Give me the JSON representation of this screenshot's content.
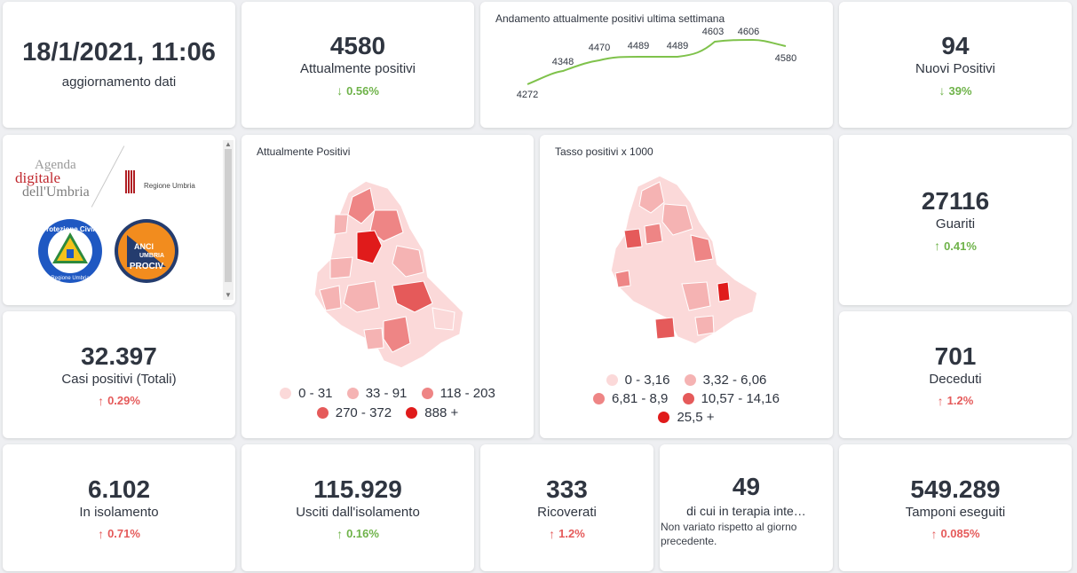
{
  "update": {
    "datetime": "18/1/2021, 11:06",
    "label": "aggiornamento dati"
  },
  "attualmente_positivi": {
    "value": "4580",
    "label": "Attualmente positivi",
    "delta": "0.56%"
  },
  "trend": {
    "title": "Andamento attualmente positivi ultima settimana",
    "points": [
      "4272",
      "4348",
      "4470",
      "4489",
      "4489",
      "4603",
      "4606",
      "4580"
    ]
  },
  "nuovi_positivi": {
    "value": "94",
    "label": "Nuovi Positivi",
    "delta": "39%"
  },
  "logos": {
    "agenda": [
      "Agenda",
      "digitale",
      "dell'Umbria"
    ],
    "regione": "Regione Umbria",
    "protezione": [
      "Protezione Civile",
      "Regione Umbria"
    ],
    "anci": [
      "ANCI",
      "UMBRIA",
      "PROCIV"
    ]
  },
  "map_positivi": {
    "title": "Attualmente Positivi",
    "legend": [
      "0 - 31",
      "33 - 91",
      "118 - 203",
      "270 - 372",
      "888 +"
    ]
  },
  "map_tasso": {
    "title": "Tasso positivi x 1000",
    "legend": [
      "0 - 3,16",
      "3,32 - 6,06",
      "6,81 - 8,9",
      "10,57 - 14,16",
      "25,5 +"
    ]
  },
  "guariti": {
    "value": "27116",
    "label": "Guariti",
    "delta": "0.41%"
  },
  "casi_totali": {
    "value": "32.397",
    "label": "Casi positivi (Totali)",
    "delta": "0.29%"
  },
  "deceduti": {
    "value": "701",
    "label": "Deceduti",
    "delta": "1.2%"
  },
  "isolamento": {
    "value": "6.102",
    "label": "In isolamento",
    "delta": "0.71%"
  },
  "usciti": {
    "value": "115.929",
    "label": "Usciti dall'isolamento",
    "delta": "0.16%"
  },
  "ricoverati": {
    "value": "333",
    "label": "Ricoverati",
    "delta": "1.2%"
  },
  "terapia": {
    "value": "49",
    "label": "di cui in terapia inte…",
    "note": "Non variato rispetto al giorno precedente."
  },
  "tamponi": {
    "value": "549.289",
    "label": "Tamponi eseguiti",
    "delta": "0.085%"
  },
  "colors": {
    "legend": [
      "#fbd9d9",
      "#f5b3b3",
      "#ee8585",
      "#e55a5a",
      "#e01b1b"
    ],
    "up_red": "#e55a5a",
    "green": "#6fb34a"
  }
}
